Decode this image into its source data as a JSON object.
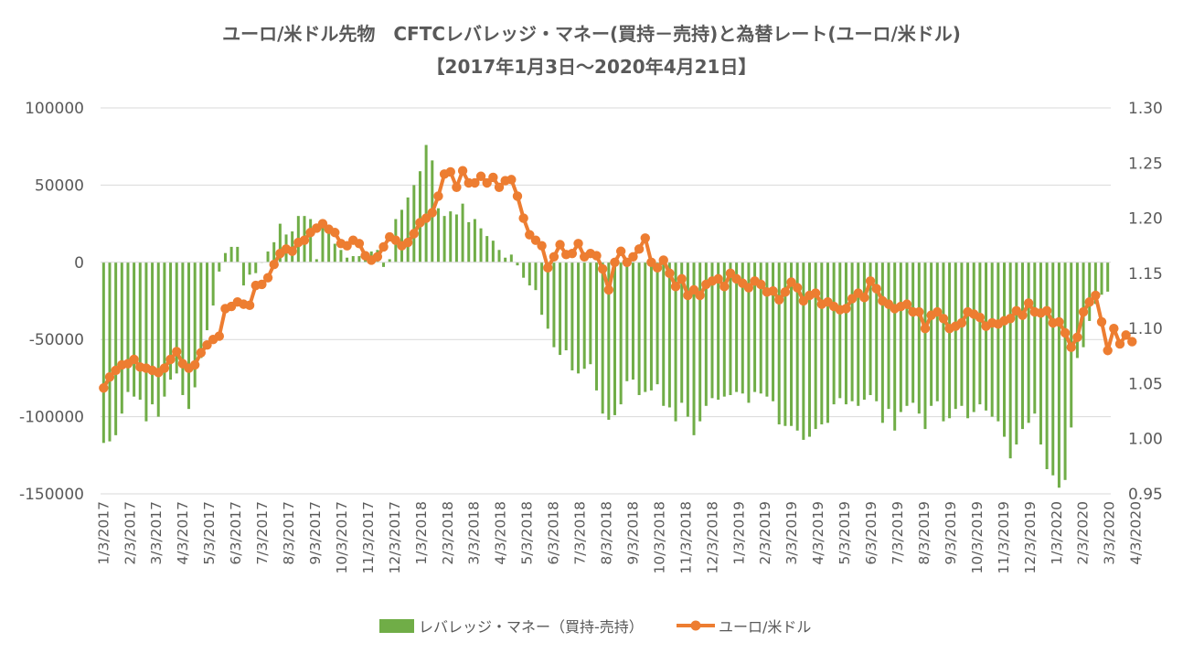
{
  "chart_data": {
    "type": "bar+line",
    "title_line1": "ユーロ/米ドル先物　CFTCレバレッジ・マネー(買持－売持)と為替レート(ユーロ/米ドル)",
    "title_line2": "【2017年1月3日～2020年4月21日】",
    "y_left": {
      "min": -150000,
      "max": 100000,
      "ticks": [
        100000,
        50000,
        0,
        -50000,
        -100000,
        -150000
      ],
      "tick_labels": [
        "100000",
        "50000",
        "0",
        "-50000",
        "-100000",
        "-150000"
      ]
    },
    "y_right": {
      "min": 0.95,
      "max": 1.3,
      "ticks": [
        1.3,
        1.25,
        1.2,
        1.15,
        1.1,
        1.05,
        1.0,
        0.95
      ],
      "tick_labels": [
        "1.30",
        "1.25",
        "1.20",
        "1.15",
        "1.10",
        "1.05",
        "1.00",
        "0.95"
      ]
    },
    "x_tick_labels": [
      "1/3/2017",
      "2/3/2017",
      "3/3/2017",
      "4/3/2017",
      "5/3/2017",
      "6/3/2017",
      "7/3/2017",
      "8/3/2017",
      "9/3/2017",
      "10/3/2017",
      "11/3/2017",
      "12/3/2017",
      "1/3/2018",
      "2/3/2018",
      "3/3/2018",
      "4/3/2018",
      "5/3/2018",
      "6/3/2018",
      "7/3/2018",
      "8/3/2018",
      "9/3/2018",
      "10/3/2018",
      "11/3/2018",
      "12/3/2018",
      "1/3/2019",
      "2/3/2019",
      "3/3/2019",
      "4/3/2019",
      "5/3/2019",
      "6/3/2019",
      "7/3/2019",
      "8/3/2019",
      "9/3/2019",
      "10/3/2019",
      "11/3/2019",
      "12/3/2019",
      "1/3/2020",
      "2/3/2020",
      "3/3/2020",
      "4/3/2020"
    ],
    "weeks_per_tick": 4.35,
    "grid": true,
    "legend_position": "bottom",
    "series": [
      {
        "name": "レバレッジ・マネー（買持-売持）",
        "type": "bar",
        "axis": "left",
        "color": "#70AD47",
        "values": [
          -117000,
          -116000,
          -112000,
          -98000,
          -84000,
          -87000,
          -89000,
          -103000,
          -92000,
          -100000,
          -87000,
          -76000,
          -72000,
          -86000,
          -95000,
          -81000,
          -62000,
          -44000,
          -28000,
          -6000,
          6000,
          10000,
          10000,
          -15000,
          -8000,
          -7000,
          0,
          7000,
          13000,
          25000,
          18000,
          20000,
          30000,
          30000,
          28000,
          2000,
          24000,
          22000,
          12000,
          8000,
          3000,
          4000,
          4000,
          7000,
          7000,
          8000,
          -3000,
          2000,
          28000,
          34000,
          42000,
          50000,
          59000,
          76000,
          66000,
          35000,
          30000,
          33000,
          31000,
          38000,
          26000,
          28000,
          22000,
          17000,
          14000,
          8000,
          3000,
          5000,
          -2000,
          -10000,
          -15000,
          -18000,
          -34000,
          -43000,
          -55000,
          -60000,
          -57000,
          -70000,
          -72000,
          -69000,
          -66000,
          -83000,
          -98000,
          -102000,
          -99000,
          -92000,
          -77000,
          -76000,
          -86000,
          -84000,
          -83000,
          -79000,
          -93000,
          -94000,
          -103000,
          -91000,
          -100000,
          -112000,
          -103000,
          -93000,
          -88000,
          -89000,
          -87000,
          -86000,
          -84000,
          -85000,
          -91000,
          -84000,
          -85000,
          -87000,
          -90000,
          -105000,
          -106000,
          -106000,
          -109000,
          -115000,
          -113000,
          -108000,
          -105000,
          -104000,
          -92000,
          -88000,
          -92000,
          -90000,
          -93000,
          -89000,
          -86000,
          -90000,
          -104000,
          -95000,
          -109000,
          -97000,
          -93000,
          -91000,
          -98000,
          -108000,
          -93000,
          -90000,
          -103000,
          -101000,
          -95000,
          -93000,
          -101000,
          -97000,
          -92000,
          -96000,
          -100000,
          -103000,
          -113000,
          -127000,
          -118000,
          -108000,
          -104000,
          -98000,
          -118000,
          -134000,
          -138000,
          -146000,
          -141000,
          -107000,
          -62000,
          -55000,
          -38000,
          -27000,
          -21000,
          -19000
        ]
      },
      {
        "name": "ユーロ/米ドル",
        "type": "line",
        "axis": "right",
        "color": "#ED7D31",
        "values": [
          1.046,
          1.056,
          1.062,
          1.067,
          1.068,
          1.072,
          1.065,
          1.064,
          1.062,
          1.06,
          1.064,
          1.072,
          1.079,
          1.068,
          1.064,
          1.067,
          1.078,
          1.085,
          1.09,
          1.093,
          1.118,
          1.12,
          1.124,
          1.122,
          1.121,
          1.139,
          1.14,
          1.146,
          1.158,
          1.168,
          1.172,
          1.17,
          1.178,
          1.18,
          1.187,
          1.191,
          1.195,
          1.19,
          1.187,
          1.177,
          1.175,
          1.18,
          1.177,
          1.166,
          1.162,
          1.165,
          1.174,
          1.183,
          1.18,
          1.175,
          1.178,
          1.186,
          1.196,
          1.2,
          1.205,
          1.22,
          1.24,
          1.242,
          1.228,
          1.243,
          1.232,
          1.232,
          1.238,
          1.232,
          1.237,
          1.228,
          1.234,
          1.235,
          1.22,
          1.2,
          1.185,
          1.18,
          1.175,
          1.155,
          1.165,
          1.176,
          1.167,
          1.168,
          1.177,
          1.165,
          1.168,
          1.166,
          1.154,
          1.135,
          1.16,
          1.17,
          1.16,
          1.165,
          1.172,
          1.182,
          1.16,
          1.155,
          1.162,
          1.15,
          1.138,
          1.145,
          1.13,
          1.135,
          1.13,
          1.14,
          1.143,
          1.145,
          1.138,
          1.15,
          1.145,
          1.141,
          1.137,
          1.143,
          1.14,
          1.133,
          1.134,
          1.126,
          1.133,
          1.142,
          1.137,
          1.125,
          1.13,
          1.132,
          1.122,
          1.124,
          1.12,
          1.117,
          1.118,
          1.127,
          1.132,
          1.128,
          1.143,
          1.136,
          1.125,
          1.122,
          1.118,
          1.12,
          1.122,
          1.115,
          1.115,
          1.1,
          1.112,
          1.115,
          1.109,
          1.1,
          1.102,
          1.105,
          1.115,
          1.113,
          1.11,
          1.102,
          1.105,
          1.104,
          1.107,
          1.109,
          1.116,
          1.112,
          1.123,
          1.115,
          1.114,
          1.116,
          1.105,
          1.106,
          1.096,
          1.083,
          1.092,
          1.115,
          1.124,
          1.13,
          1.106,
          1.08,
          1.1,
          1.086,
          1.094,
          1.088
        ]
      }
    ]
  }
}
